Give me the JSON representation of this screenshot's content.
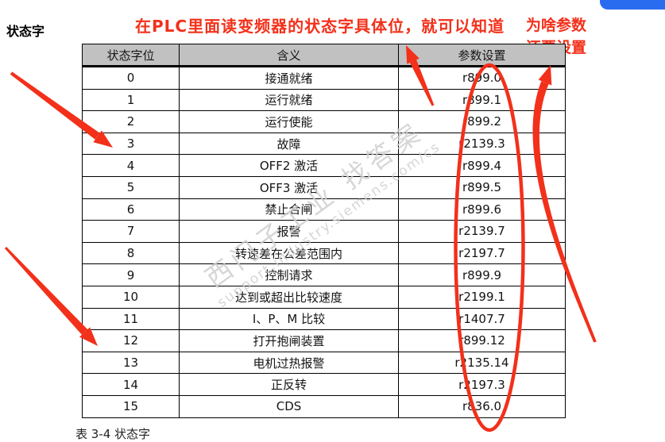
{
  "page": {
    "title": "状态字",
    "caption": "表 3-4 状态字"
  },
  "annotations": {
    "note_top": "在PLC里面读变频器的状态字具体位，就可以知道",
    "note_right_line1": "为啥参数",
    "note_right_line2": "还要设置",
    "accent_red": "#f3301a"
  },
  "watermark": {
    "line1": "西门子工业  找答案",
    "line2": "support.industry.siemens.com/cs"
  },
  "chip": {
    "color": "#2a6cf0"
  },
  "table": {
    "header_bg": "#c1c1c1",
    "headers": [
      "状态字位",
      "含义",
      "参数设置"
    ],
    "rows": [
      {
        "bit": "0",
        "meaning": "接通就绪",
        "param": "r899.0"
      },
      {
        "bit": "1",
        "meaning": "运行就绪",
        "param": "r899.1"
      },
      {
        "bit": "2",
        "meaning": "运行使能",
        "param": "r899.2"
      },
      {
        "bit": "3",
        "meaning": "故障",
        "param": "r2139.3"
      },
      {
        "bit": "4",
        "meaning": "OFF2 激活",
        "param": "r899.4"
      },
      {
        "bit": "5",
        "meaning": "OFF3 激活",
        "param": "r899.5"
      },
      {
        "bit": "6",
        "meaning": "禁止合闸",
        "param": "r899.6"
      },
      {
        "bit": "7",
        "meaning": "报警",
        "param": "r2139.7"
      },
      {
        "bit": "8",
        "meaning": "转速差在公差范围内",
        "param": "r2197.7"
      },
      {
        "bit": "9",
        "meaning": "控制请求",
        "param": "r899.9"
      },
      {
        "bit": "10",
        "meaning": "达到或超出比较速度",
        "param": "r2199.1"
      },
      {
        "bit": "11",
        "meaning": "I、P、M 比较",
        "param": "r1407.7"
      },
      {
        "bit": "12",
        "meaning": "打开抱闸装置",
        "param": "r899.12"
      },
      {
        "bit": "13",
        "meaning": "电机过热报警",
        "param": "r2135.14"
      },
      {
        "bit": "14",
        "meaning": "正反转",
        "param": "r2197.3"
      },
      {
        "bit": "15",
        "meaning": "CDS",
        "param": "r836.0"
      }
    ]
  }
}
